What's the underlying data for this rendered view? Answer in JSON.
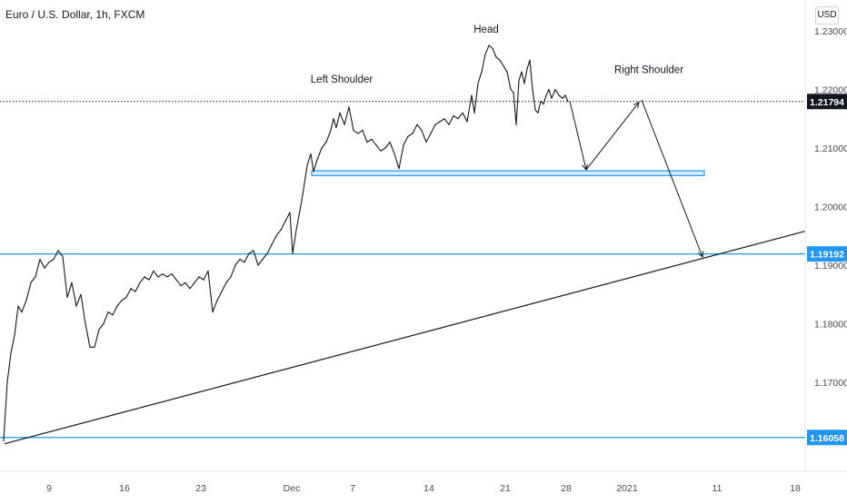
{
  "chart_data": {
    "type": "line",
    "title": "Euro / U.S. Dollar, 1h, FXCM",
    "currency": "USD",
    "ylim": [
      1.1525,
      1.2365
    ],
    "y_ticks": [
      "1.23000",
      "1.22000",
      "1.21000",
      "1.20000",
      "1.19000",
      "1.18000",
      "1.17000"
    ],
    "x_ticks": [
      "9",
      "16",
      "23",
      "Dec",
      "7",
      "14",
      "21",
      "28",
      "2021",
      "11",
      "18"
    ],
    "price_labels": [
      {
        "text": "1.21794",
        "value": 1.21794,
        "style": "current"
      },
      {
        "text": "1.19192",
        "value": 1.19192,
        "style": "level"
      },
      {
        "text": "1.16058",
        "value": 1.16058,
        "style": "level"
      }
    ],
    "horizontal_levels": [
      1.19192,
      1.16058
    ],
    "current_price": 1.21794,
    "neckline_zone": [
      1.2053,
      1.2061
    ],
    "trendline": {
      "from": [
        "Nov 3",
        1.1595
      ],
      "to": [
        "Jan 20",
        1.1958
      ]
    },
    "annotations": [
      "Left Shoulder",
      "Head",
      "Right Shoulder"
    ],
    "projection_path": [
      [
        "Dec 29",
        1.218
      ],
      [
        "Jan 1",
        1.2063
      ],
      [
        "Jan 5",
        1.2178
      ]
    ],
    "target_path": [
      [
        "Jan 4",
        1.2182
      ],
      [
        "Jan 9",
        1.1914
      ]
    ],
    "series": [
      {
        "values": [
          [
            0,
            1.16
          ],
          [
            4,
            1.17
          ],
          [
            8,
            1.175
          ],
          [
            12,
            1.178
          ],
          [
            16,
            1.183
          ],
          [
            20,
            1.182
          ],
          [
            25,
            1.184
          ],
          [
            30,
            1.187
          ],
          [
            35,
            1.188
          ],
          [
            40,
            1.191
          ],
          [
            45,
            1.1895
          ],
          [
            50,
            1.1905
          ],
          [
            55,
            1.191
          ],
          [
            60,
            1.1925
          ],
          [
            65,
            1.1915
          ],
          [
            70,
            1.1845
          ],
          [
            75,
            1.187
          ],
          [
            80,
            1.183
          ],
          [
            85,
            1.185
          ],
          [
            90,
            1.18
          ],
          [
            95,
            1.176
          ],
          [
            100,
            1.176
          ],
          [
            105,
            1.179
          ],
          [
            110,
            1.18
          ],
          [
            115,
            1.182
          ],
          [
            120,
            1.1815
          ],
          [
            125,
            1.183
          ],
          [
            130,
            1.184
          ],
          [
            135,
            1.1845
          ],
          [
            140,
            1.186
          ],
          [
            145,
            1.1855
          ],
          [
            150,
            1.187
          ],
          [
            155,
            1.188
          ],
          [
            160,
            1.1875
          ],
          [
            165,
            1.189
          ],
          [
            170,
            1.188
          ],
          [
            175,
            1.1885
          ],
          [
            180,
            1.188
          ],
          [
            185,
            1.1885
          ],
          [
            190,
            1.1875
          ],
          [
            195,
            1.1865
          ],
          [
            200,
            1.187
          ],
          [
            205,
            1.186
          ],
          [
            210,
            1.187
          ],
          [
            215,
            1.188
          ],
          [
            220,
            1.1875
          ],
          [
            225,
            1.189
          ],
          [
            230,
            1.182
          ],
          [
            235,
            1.184
          ],
          [
            240,
            1.1855
          ],
          [
            245,
            1.187
          ],
          [
            250,
            1.188
          ],
          [
            255,
            1.19
          ],
          [
            260,
            1.191
          ],
          [
            265,
            1.1905
          ],
          [
            270,
            1.192
          ],
          [
            275,
            1.1925
          ],
          [
            280,
            1.19
          ],
          [
            285,
            1.191
          ],
          [
            290,
            1.192
          ],
          [
            295,
            1.1935
          ],
          [
            300,
            1.195
          ],
          [
            305,
            1.196
          ],
          [
            310,
            1.1975
          ],
          [
            315,
            1.199
          ],
          [
            318,
            1.192
          ],
          [
            322,
            1.196
          ],
          [
            325,
            1.1985
          ],
          [
            328,
            1.201
          ],
          [
            331,
            1.204
          ],
          [
            334,
            1.207
          ],
          [
            338,
            1.209
          ],
          [
            341,
            1.206
          ],
          [
            345,
            1.208
          ],
          [
            350,
            1.21
          ],
          [
            355,
            1.211
          ],
          [
            360,
            1.213
          ],
          [
            363,
            1.215
          ],
          [
            366,
            1.2135
          ],
          [
            370,
            1.216
          ],
          [
            375,
            1.214
          ],
          [
            380,
            1.217
          ],
          [
            385,
            1.213
          ],
          [
            390,
            1.2125
          ],
          [
            395,
            1.213
          ],
          [
            400,
            1.211
          ],
          [
            405,
            1.2115
          ],
          [
            410,
            1.2105
          ],
          [
            415,
            1.2095
          ],
          [
            420,
            1.21
          ],
          [
            425,
            1.211
          ],
          [
            430,
            1.209
          ],
          [
            435,
            1.2065
          ],
          [
            440,
            1.2105
          ],
          [
            445,
            1.212
          ],
          [
            450,
            1.2125
          ],
          [
            455,
            1.214
          ],
          [
            460,
            1.213
          ],
          [
            465,
            1.211
          ],
          [
            470,
            1.2125
          ],
          [
            475,
            1.214
          ],
          [
            480,
            1.2145
          ],
          [
            485,
            1.215
          ],
          [
            490,
            1.214
          ],
          [
            495,
            1.2155
          ],
          [
            500,
            1.215
          ],
          [
            505,
            1.216
          ],
          [
            510,
            1.2145
          ],
          [
            515,
            1.219
          ],
          [
            518,
            1.216
          ],
          [
            522,
            1.221
          ],
          [
            526,
            1.223
          ],
          [
            530,
            1.226
          ],
          [
            534,
            1.2275
          ],
          [
            538,
            1.227
          ],
          [
            542,
            1.2255
          ],
          [
            546,
            1.225
          ],
          [
            550,
            1.224
          ],
          [
            554,
            1.223
          ],
          [
            558,
            1.22
          ],
          [
            561,
            1.2195
          ],
          [
            564,
            1.214
          ],
          [
            567,
            1.2215
          ],
          [
            570,
            1.223
          ],
          [
            573,
            1.221
          ],
          [
            576,
            1.2235
          ],
          [
            579,
            1.225
          ],
          [
            582,
            1.22
          ],
          [
            585,
            1.2165
          ],
          [
            588,
            1.216
          ],
          [
            591,
            1.218
          ],
          [
            594,
            1.2175
          ],
          [
            597,
            1.219
          ],
          [
            600,
            1.22
          ],
          [
            603,
            1.2185
          ],
          [
            607,
            1.22
          ],
          [
            611,
            1.219
          ],
          [
            615,
            1.2185
          ],
          [
            618,
            1.219
          ],
          [
            621,
            1.2179
          ]
        ]
      }
    ]
  }
}
